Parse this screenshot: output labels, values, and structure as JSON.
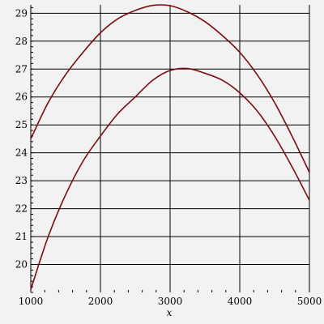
{
  "chart_data": {
    "type": "line",
    "title": "",
    "xlabel": "x",
    "ylabel": "",
    "xlim": [
      1000,
      5000
    ],
    "ylim": [
      19,
      29.3
    ],
    "x_ticks": [
      1000,
      2000,
      3000,
      4000,
      5000
    ],
    "y_ticks": [
      20,
      21,
      22,
      23,
      24,
      25,
      26,
      27,
      28,
      29
    ],
    "grid": true,
    "line_color": "#7a0a12",
    "series": [
      {
        "x": [
          1000,
          1250,
          1500,
          1750,
          2000,
          2250,
          2500,
          2750,
          3000,
          3250,
          3500,
          3750,
          4000,
          4250,
          4500,
          4750,
          5000
        ],
        "values": [
          24.5,
          25.8,
          26.8,
          27.6,
          28.3,
          28.8,
          29.1,
          29.28,
          29.27,
          29.05,
          28.7,
          28.2,
          27.6,
          26.8,
          25.8,
          24.6,
          23.3
        ]
      },
      {
        "x": [
          1000,
          1250,
          1500,
          1750,
          2000,
          2250,
          2500,
          2750,
          3000,
          3250,
          3500,
          3750,
          4000,
          4250,
          4500,
          4750,
          5000
        ],
        "values": [
          19.1,
          21.0,
          22.5,
          23.7,
          24.6,
          25.4,
          26.0,
          26.6,
          26.95,
          27.02,
          26.85,
          26.6,
          26.15,
          25.5,
          24.6,
          23.5,
          22.3
        ]
      }
    ]
  }
}
